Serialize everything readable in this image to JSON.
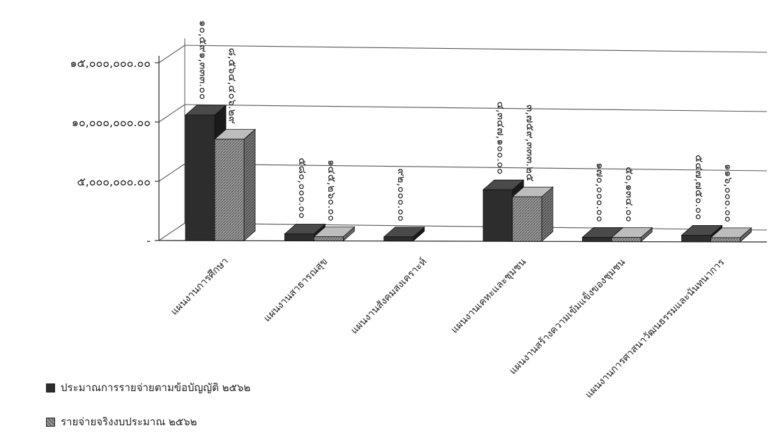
{
  "chart_data": {
    "type": "bar",
    "title": "",
    "xlabel": "",
    "ylabel": "",
    "ylim": [
      0,
      15000000
    ],
    "y_tick_values": [
      0,
      5000000,
      10000000,
      15000000
    ],
    "y_tick_labels": [
      "-",
      "๕,๐๐๐,๐๐๐.๐๐",
      "๑๐,๐๐๐,๐๐๐.๐๐",
      "๑๕,๐๐๐,๐๐๐.๐๐"
    ],
    "categories": [
      "แผนงานการศึกษา",
      "แผนงานสาธารณสุข",
      "แผนงานสังคมสงเคราะห์",
      "แผนงานเคหะและชุมชน",
      "แผนงานสร้างความเข้มแข็งของชุมชน",
      "แผนงานการศาสนาวัฒนธรรมและนันทนาการ"
    ],
    "series": [
      {
        "name": "ประมาณการรายจ่ายตามข้อบัญญัติ ๒๕๖๒",
        "values": [
          10591333,
          580000,
          92000,
          4347100,
          170000,
          547750
        ],
        "labels": [
          "๑๐,๕๙๑,๓๓๓.๐๐",
          "๕๘๐,๐๐๐.๐๐",
          "๙๒,๐๐๐.๐๐",
          "๔,๓๔๗,๑๐๐.๐๐",
          "๑๗๐,๐๐๐.๐๐",
          "๕๔๗,๗๕๐.๐๐"
        ],
        "color": "#2d2d2d"
      },
      {
        "name": "รายจ่ายจริงงบประมาณ ๒๕๖๒",
        "values": [
          8564406.29,
          145260,
          null,
          3759333.25,
          50134,
          116000
        ],
        "labels": [
          "๘,๕๖๔,๔๐๖.๒๙",
          "๑๔๕,๒๖๐.๐๐",
          "",
          "๓,๗๕๙,๓๓๓.๒๕",
          "๕๐,๑๓๔.๐๐",
          "๑๑๖,๐๐๐.๐๐"
        ],
        "color": "#8c8c8c"
      }
    ],
    "grid": true,
    "legend_position": "bottom-left",
    "style": "3d-clustered-column"
  }
}
